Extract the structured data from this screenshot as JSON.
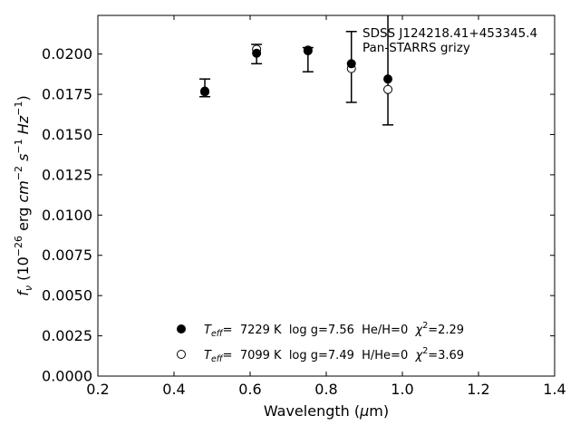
{
  "chart_data": {
    "type": "scatter",
    "title": "",
    "xlabel": "Wavelength (μm)",
    "ylabel": "fν (10⁻²⁶ erg cm⁻² s⁻¹ Hz⁻¹)",
    "xlim": [
      0.2,
      1.4
    ],
    "ylim": [
      0.0,
      0.0224
    ],
    "x_ticks": [
      0.2,
      0.4,
      0.6,
      0.8,
      1.0,
      1.2,
      1.4
    ],
    "x_tick_labels": [
      "0.2",
      "0.4",
      "0.6",
      "0.8",
      "1.0",
      "1.2",
      "1.4"
    ],
    "y_ticks": [
      0.0,
      0.0025,
      0.005,
      0.0075,
      0.01,
      0.0125,
      0.015,
      0.0175,
      0.02
    ],
    "y_tick_labels": [
      "0.0000",
      "0.0025",
      "0.0050",
      "0.0075",
      "0.0100",
      "0.0125",
      "0.0150",
      "0.0175",
      "0.0200"
    ],
    "grid": false,
    "annotation": {
      "lines": [
        "SDSS J124218.41+453345.4",
        "Pan-STARRS grizy"
      ],
      "placement": "top-right"
    },
    "observed": {
      "x": [
        0.481,
        0.617,
        0.752,
        0.866,
        0.962
      ],
      "y": [
        0.01785,
        0.02,
        0.0203,
        0.0192,
        0.0224
      ],
      "yerr_low": [
        0.0005,
        0.0006,
        0.0014,
        0.0022,
        0.0068
      ],
      "yerr_high": [
        0.0006,
        0.0006,
        0.0001,
        0.0022,
        0.0038
      ]
    },
    "series": [
      {
        "name": "Teff= 7229 K log g=7.56 He/H=0 χ²=2.29",
        "marker": "filled-circle",
        "x": [
          0.481,
          0.617,
          0.752,
          0.866,
          0.962
        ],
        "y": [
          0.0177,
          0.02005,
          0.0202,
          0.0194,
          0.01845
        ]
      },
      {
        "name": "Teff= 7099 K log g=7.49 H/He=0 χ²=3.69",
        "marker": "open-circle",
        "x": [
          0.481,
          0.617,
          0.752,
          0.866,
          0.962
        ],
        "y": [
          0.01765,
          0.0203,
          0.02025,
          0.0191,
          0.0178
        ]
      }
    ],
    "legend": {
      "placement": "lower-center",
      "entries": [
        {
          "teff_label": "T",
          "teff_sub": "eff",
          "rest": "=  7229 K  log g=7.56  He/H=0  ",
          "chi_label": "χ",
          "chi_sup": "2",
          "chi_value": "=2.29"
        },
        {
          "teff_label": "T",
          "teff_sub": "eff",
          "rest": "=  7099 K  log g=7.49  H/He=0  ",
          "chi_label": "χ",
          "chi_sup": "2",
          "chi_value": "=3.69"
        }
      ]
    }
  }
}
